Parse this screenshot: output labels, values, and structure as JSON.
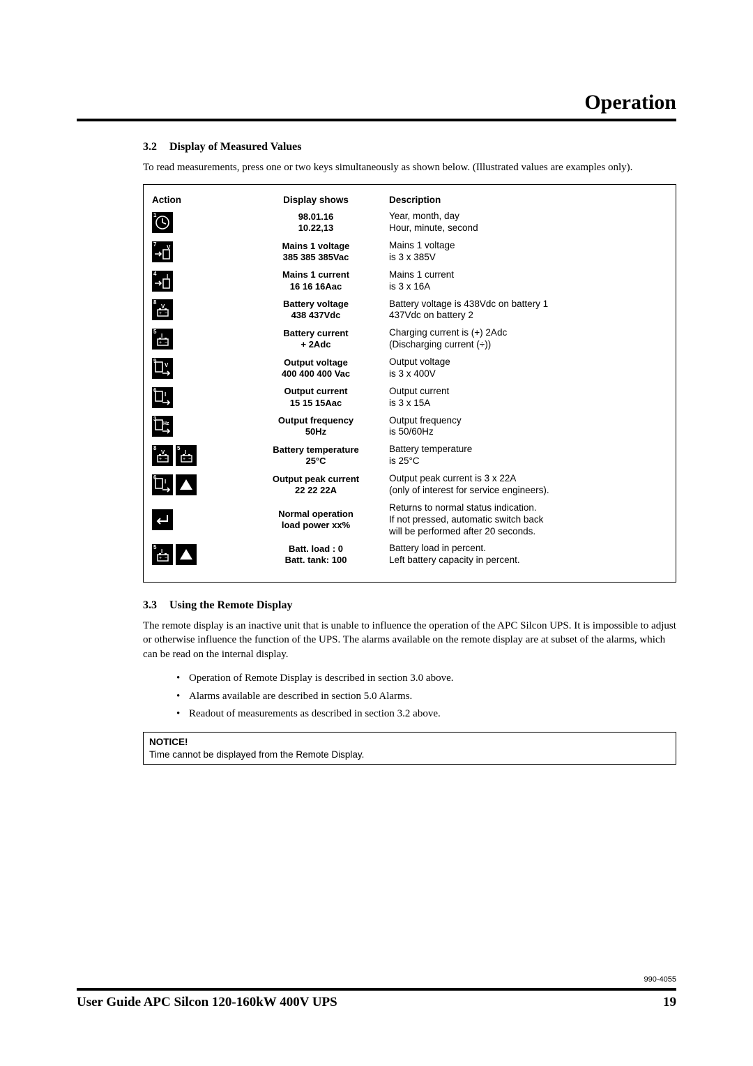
{
  "header": {
    "title": "Operation"
  },
  "section32": {
    "num": "3.2",
    "title": "Display of Measured Values",
    "intro": "To read measurements, press one or two keys simultaneously as shown below. (Illustrated values are examples only)."
  },
  "table": {
    "head": {
      "action": "Action",
      "display": "Display shows",
      "desc": "Description"
    },
    "rows": [
      {
        "icons": [
          {
            "type": "clock",
            "num": "1"
          }
        ],
        "display": [
          "98.01.16",
          "10.22,13"
        ],
        "desc": [
          "Year, month, day",
          "Hour, minute, second"
        ]
      },
      {
        "icons": [
          {
            "type": "in-v",
            "num": "7"
          }
        ],
        "display": [
          "Mains 1 voltage",
          "385 385 385Vac"
        ],
        "desc": [
          "Mains 1 voltage",
          "is 3 x 385V"
        ]
      },
      {
        "icons": [
          {
            "type": "in-i",
            "num": "4"
          }
        ],
        "display": [
          "Mains 1 current",
          "16 16 16Aac"
        ],
        "desc": [
          "Mains 1 current",
          "is 3 x 16A"
        ]
      },
      {
        "icons": [
          {
            "type": "batt-v",
            "num": "8"
          }
        ],
        "display": [
          "Battery voltage",
          "438 437Vdc"
        ],
        "desc": [
          "Battery voltage is 438Vdc on battery 1",
          "437Vdc on battery 2"
        ]
      },
      {
        "icons": [
          {
            "type": "batt-i",
            "num": "5"
          }
        ],
        "display": [
          "Battery current",
          "+ 2Adc"
        ],
        "desc": [
          "Charging current is (+) 2Adc",
          "(Discharging current (÷))"
        ]
      },
      {
        "icons": [
          {
            "type": "out-v",
            "num": "9"
          }
        ],
        "display": [
          "Output voltage",
          "400 400 400 Vac"
        ],
        "desc": [
          "Output voltage",
          "is 3 x 400V"
        ]
      },
      {
        "icons": [
          {
            "type": "out-i",
            "num": "6"
          }
        ],
        "display": [
          "Output current",
          "15 15 15Aac"
        ],
        "desc": [
          "Output current",
          "is 3 x 15A"
        ]
      },
      {
        "icons": [
          {
            "type": "out-hz",
            "num": "3"
          }
        ],
        "display": [
          "Output frequency",
          "50Hz"
        ],
        "desc": [
          "Output frequency",
          "is 50/60Hz"
        ]
      },
      {
        "icons": [
          {
            "type": "batt-v",
            "num": "8"
          },
          {
            "type": "batt-i",
            "num": "5"
          }
        ],
        "display": [
          "Battery temperature",
          "25°C"
        ],
        "desc": [
          "Battery temperature",
          "is 25°C"
        ]
      },
      {
        "icons": [
          {
            "type": "out-i",
            "num": "6"
          },
          {
            "type": "up",
            "num": ""
          }
        ],
        "display": [
          "Output peak current",
          "22 22 22A"
        ],
        "desc": [
          "Output peak current is 3 x 22A",
          "(only of interest for service engineers)."
        ]
      },
      {
        "icons": [
          {
            "type": "enter",
            "num": ""
          }
        ],
        "display": [
          "Normal operation",
          "load power xx%"
        ],
        "desc": [
          "Returns to normal status indication.",
          "If not pressed, automatic switch back",
          "will be performed after 20 seconds."
        ]
      },
      {
        "icons": [
          {
            "type": "batt-i",
            "num": "5"
          },
          {
            "type": "up",
            "num": ""
          }
        ],
        "display": [
          "Batt. load : 0",
          "Batt. tank:  100"
        ],
        "desc": [
          "Battery load in percent.",
          "Left battery capacity in percent."
        ]
      }
    ]
  },
  "section33": {
    "num": "3.3",
    "title": "Using the Remote Display",
    "para": "The remote display is an inactive unit that is unable to influence the operation of the APC Silcon UPS. It is impossible to adjust or otherwise influence the function of the UPS. The alarms available on the remote display are at subset of the alarms, which can be read on the internal display.",
    "bullets": [
      "Operation of Remote Display is described in section 3.0 above.",
      "Alarms available are described in section 5.0 Alarms.",
      "Readout of measurements as described in section 3.2 above."
    ]
  },
  "notice": {
    "title": "NOTICE!",
    "text": "Time cannot be displayed from the Remote Display."
  },
  "footer": {
    "docnum": "990-4055",
    "title": "User Guide APC Silcon 120-160kW 400V UPS",
    "page": "19"
  }
}
